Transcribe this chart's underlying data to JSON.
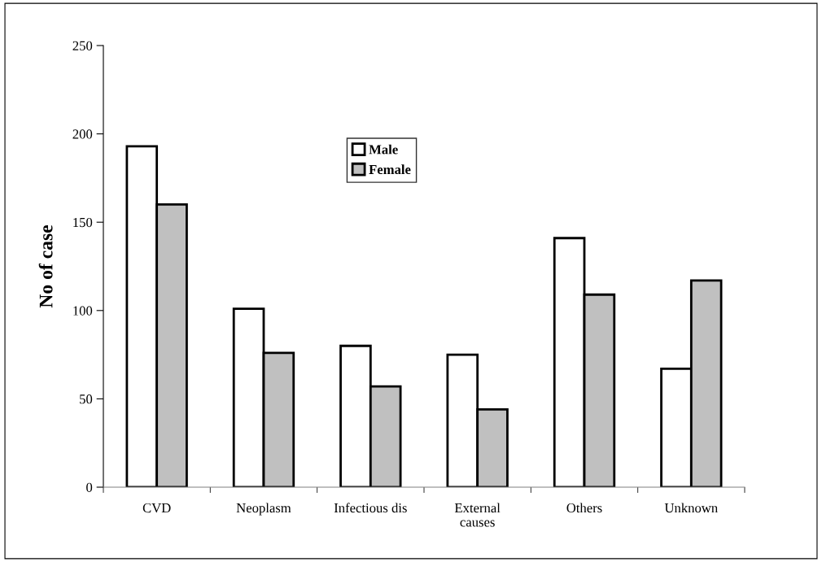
{
  "chart_data": {
    "type": "bar",
    "ylabel": "No of case",
    "categories": [
      "CVD",
      "Neoplasm",
      "Infectious dis",
      "External\ncauses",
      "Others",
      "Unknown"
    ],
    "series": [
      {
        "name": "Male",
        "color": "#ffffff",
        "values": [
          193,
          101,
          80,
          75,
          141,
          67
        ]
      },
      {
        "name": "Female",
        "color": "#c0c0c0",
        "values": [
          160,
          76,
          57,
          44,
          109,
          117
        ]
      }
    ],
    "ylim": [
      0,
      250
    ],
    "yticks": [
      0,
      50,
      100,
      150,
      200,
      250
    ],
    "grid": false,
    "legend": "top center"
  }
}
